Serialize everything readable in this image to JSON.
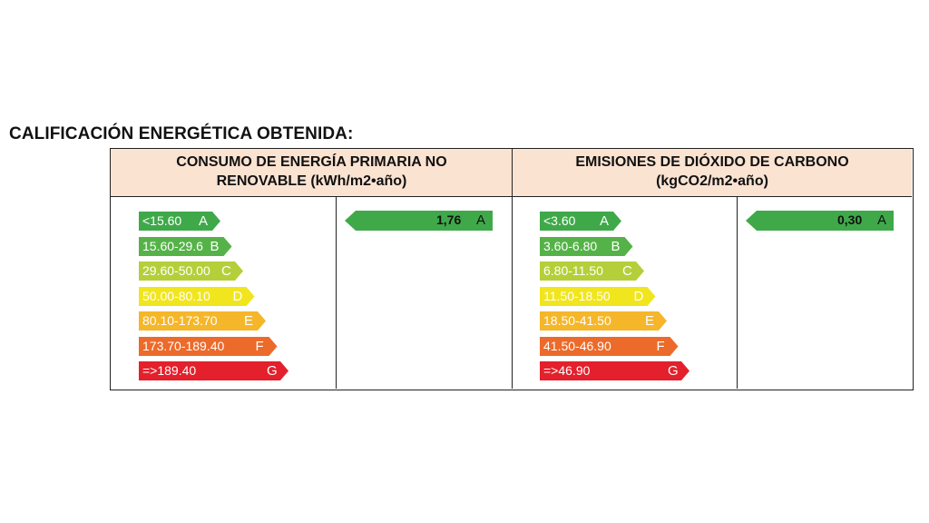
{
  "title": "CALIFICACIÓN ENERGÉTICA OBTENIDA:",
  "consumption": {
    "header_line1": "CONSUMO  DE ENERGÍA PRIMARIA NO",
    "header_line2": "RENOVABLE (kWh/m2•año)",
    "scale": [
      {
        "range": "<15.60",
        "letter": "A",
        "color": "#3fa94a"
      },
      {
        "range": "15.60-29.6",
        "letter": "B",
        "color": "#55b248"
      },
      {
        "range": "29.60-50.00",
        "letter": "C",
        "color": "#b5cf3a"
      },
      {
        "range": "50.00-80.10",
        "letter": "D",
        "color": "#f1e51e"
      },
      {
        "range": "80.10-173.70",
        "letter": "E",
        "color": "#f5b62a"
      },
      {
        "range": "173.70-189.40",
        "letter": "F",
        "color": "#ec6a2a"
      },
      {
        "range": "=>189.40",
        "letter": "G",
        "color": "#e3202c"
      }
    ],
    "result": {
      "value": "1,76",
      "letter": "A",
      "color": "#3fa94a"
    }
  },
  "emissions": {
    "header_line1": "EMISIONES DE DIÓXIDO DE CARBONO",
    "header_line2": "(kgCO2/m2•año)",
    "scale": [
      {
        "range": "<3.60",
        "letter": "A",
        "color": "#3fa94a"
      },
      {
        "range": "3.60-6.80",
        "letter": "B",
        "color": "#55b248"
      },
      {
        "range": "6.80-11.50",
        "letter": "C",
        "color": "#b5cf3a"
      },
      {
        "range": "11.50-18.50",
        "letter": "D",
        "color": "#f1e51e"
      },
      {
        "range": "18.50-41.50",
        "letter": "E",
        "color": "#f5b62a"
      },
      {
        "range": "41.50-46.90",
        "letter": "F",
        "color": "#ec6a2a"
      },
      {
        "range": "=>46.90",
        "letter": "G",
        "color": "#e3202c"
      }
    ],
    "result": {
      "value": "0,30",
      "letter": "A",
      "color": "#3fa94a"
    }
  }
}
